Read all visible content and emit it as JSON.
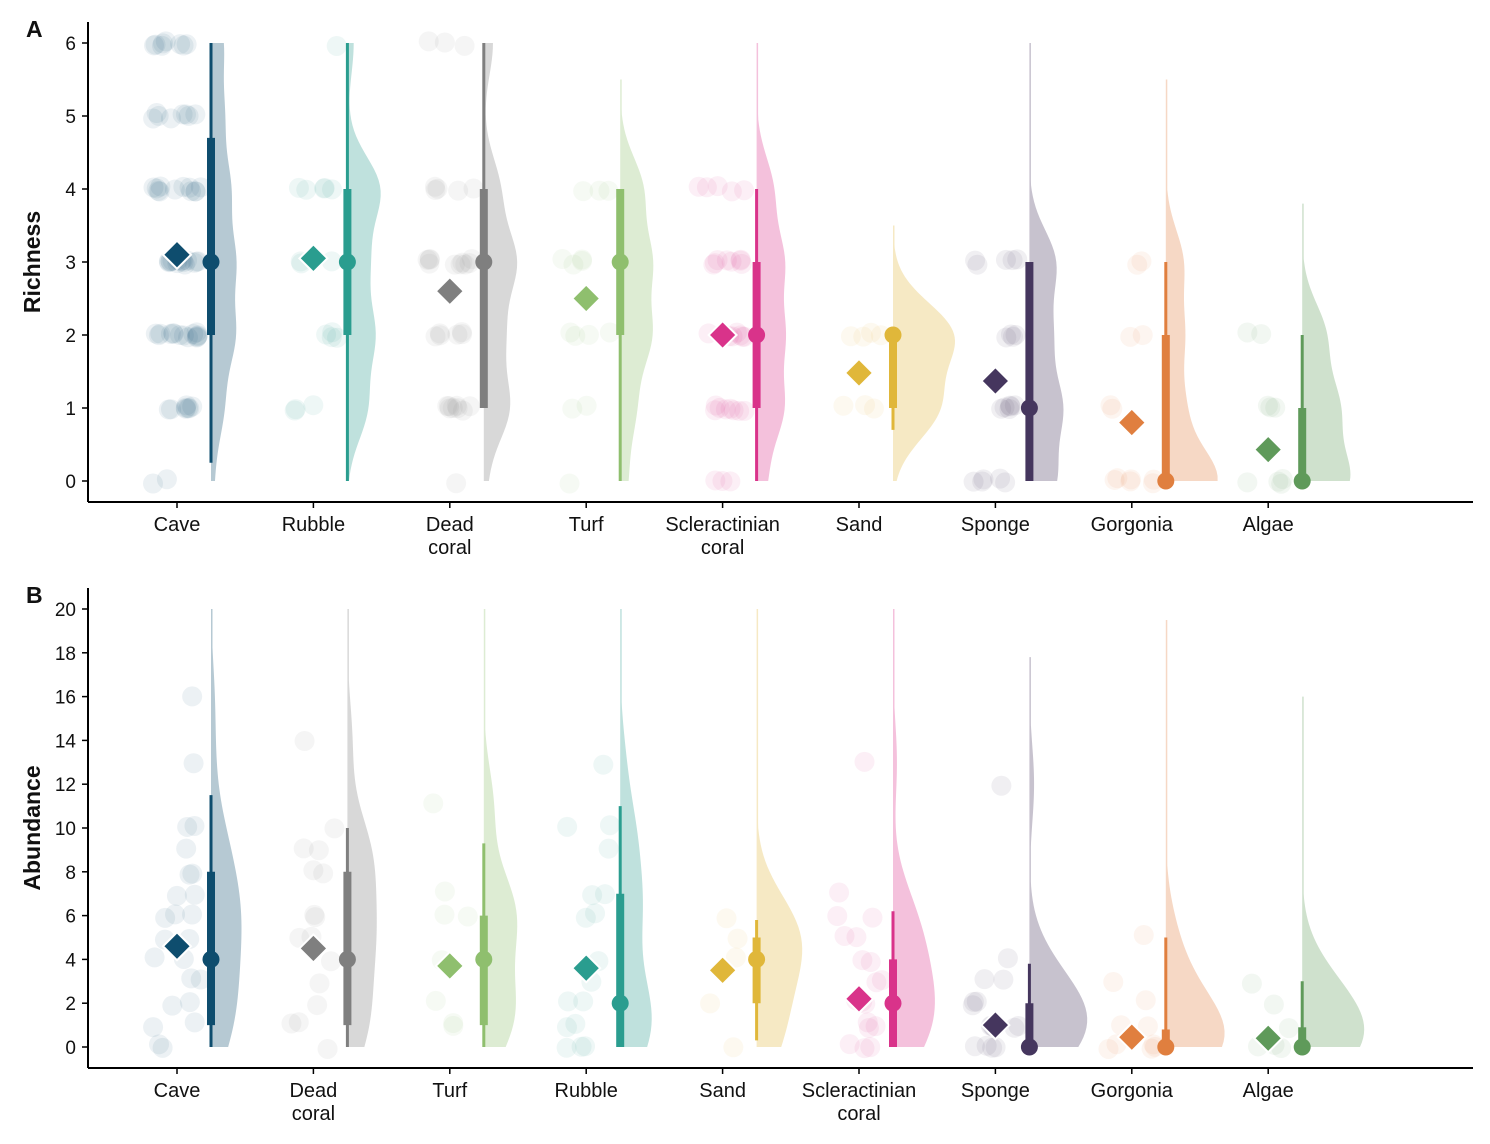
{
  "chart_data": [
    {
      "type": "raincloud",
      "panel_label": "A",
      "ylabel": "Richness",
      "ylim": [
        0,
        6
      ],
      "yticks": [
        0,
        1,
        2,
        3,
        4,
        5,
        6
      ],
      "bandwidth": 0.45,
      "groups": [
        {
          "name": "Cave",
          "color": "#0e4d6e",
          "mean": 3.1,
          "median": 3,
          "q": [
            2,
            4.7
          ],
          "whisker": [
            0.25,
            6
          ],
          "violin": [
            0,
            6
          ],
          "points": [
            0,
            0,
            1,
            1,
            1,
            1,
            1,
            1,
            1,
            1,
            2,
            2,
            2,
            2,
            2,
            2,
            2,
            2,
            2,
            2,
            2,
            2,
            2,
            2,
            2,
            3,
            3,
            3,
            3,
            3,
            3,
            3,
            3,
            3,
            3,
            3,
            3,
            3,
            3,
            3,
            4,
            4,
            4,
            4,
            4,
            4,
            4,
            4,
            4,
            4,
            4,
            4,
            5,
            5,
            5,
            5,
            5,
            5,
            5,
            5,
            6,
            6,
            6,
            6,
            6,
            6,
            6,
            6
          ]
        },
        {
          "name": "Rubble",
          "color": "#2a9d8f",
          "mean": 3.05,
          "median": 3,
          "q": [
            2,
            4
          ],
          "whisker": [
            0,
            6
          ],
          "violin": [
            0,
            6
          ],
          "points": [
            1,
            1,
            1,
            2,
            2,
            2,
            2,
            3,
            3,
            3,
            4,
            4,
            4,
            4,
            4,
            6
          ]
        },
        {
          "name": "Dead\ncoral",
          "color": "#7f7f7f",
          "mean": 2.6,
          "median": 3,
          "q": [
            1,
            4
          ],
          "whisker": [
            1,
            6
          ],
          "violin": [
            0,
            6
          ],
          "points": [
            0,
            1,
            1,
            1,
            1,
            1,
            1,
            1,
            1,
            2,
            2,
            2,
            2,
            2,
            2,
            3,
            3,
            3,
            3,
            3,
            3,
            3,
            3,
            3,
            3,
            4,
            4,
            4,
            4,
            4,
            6,
            6,
            6
          ]
        },
        {
          "name": "Turf",
          "color": "#8fbf6e",
          "mean": 2.5,
          "median": 3,
          "q": [
            2,
            4
          ],
          "whisker": [
            0,
            4
          ],
          "violin": [
            0,
            5.5
          ],
          "points": [
            0,
            1,
            1,
            2,
            2,
            2,
            2,
            3,
            3,
            3,
            3,
            4,
            4,
            4
          ]
        },
        {
          "name": "Scleractinian\ncoral",
          "color": "#d9338a",
          "mean": 2.0,
          "median": 2,
          "q": [
            1,
            3
          ],
          "whisker": [
            0,
            4
          ],
          "violin": [
            0,
            6
          ],
          "points": [
            0,
            0,
            0,
            1,
            1,
            1,
            1,
            1,
            1,
            1,
            1,
            2,
            2,
            2,
            2,
            2,
            2,
            2,
            2,
            3,
            3,
            3,
            3,
            3,
            3,
            3,
            3,
            4,
            4,
            4,
            4,
            4
          ]
        },
        {
          "name": "Sand",
          "color": "#e0b73a",
          "mean": 1.48,
          "median": 2,
          "q": [
            1,
            2
          ],
          "whisker": [
            0.7,
            2
          ],
          "violin": [
            0,
            3.5
          ],
          "points": [
            1,
            1,
            1,
            2,
            2,
            2,
            2
          ]
        },
        {
          "name": "Sponge",
          "color": "#45365e",
          "mean": 1.37,
          "median": 1,
          "q": [
            0,
            3
          ],
          "whisker": [
            0,
            3
          ],
          "violin": [
            0,
            6
          ],
          "points": [
            0,
            0,
            0,
            0,
            0,
            1,
            1,
            1,
            1,
            1,
            1,
            2,
            2,
            2,
            2,
            3,
            3,
            3,
            3,
            3
          ]
        },
        {
          "name": "Gorgonia",
          "color": "#e07f3f",
          "mean": 0.8,
          "median": 0,
          "q": [
            0,
            2
          ],
          "whisker": [
            0,
            3
          ],
          "violin": [
            0,
            5.5
          ],
          "points": [
            0,
            0,
            0,
            0,
            0,
            0,
            1,
            1,
            2,
            2,
            3,
            3
          ]
        },
        {
          "name": "Algae",
          "color": "#5f9a5a",
          "mean": 0.43,
          "median": 0,
          "q": [
            0,
            1
          ],
          "whisker": [
            0,
            2
          ],
          "violin": [
            0,
            3.8
          ],
          "points": [
            0,
            0,
            0,
            0,
            1,
            1,
            1,
            2,
            2
          ]
        }
      ]
    },
    {
      "type": "raincloud",
      "panel_label": "B",
      "ylabel": "Abundance",
      "ylim": [
        0,
        20
      ],
      "yticks": [
        0,
        2,
        4,
        6,
        8,
        10,
        12,
        14,
        16,
        18,
        20
      ],
      "bandwidth": 1.8,
      "groups": [
        {
          "name": "Cave",
          "color": "#0e4d6e",
          "mean": 4.6,
          "median": 4,
          "q": [
            1,
            8
          ],
          "whisker": [
            0,
            11.5
          ],
          "violin": [
            0,
            20
          ],
          "points": [
            0,
            0,
            1,
            1,
            2,
            2,
            3,
            3,
            4,
            4,
            5,
            5,
            6,
            6,
            6,
            7,
            7,
            8,
            8,
            9,
            10,
            10,
            13,
            16
          ]
        },
        {
          "name": "Dead\ncoral",
          "color": "#7f7f7f",
          "mean": 4.5,
          "median": 4,
          "q": [
            1,
            8
          ],
          "whisker": [
            0,
            10
          ],
          "violin": [
            0,
            20
          ],
          "points": [
            0,
            1,
            1,
            2,
            3,
            4,
            5,
            5,
            6,
            6,
            8,
            8,
            9,
            9,
            10,
            14
          ]
        },
        {
          "name": "Turf",
          "color": "#8fbf6e",
          "mean": 3.7,
          "median": 4,
          "q": [
            1,
            6
          ],
          "whisker": [
            0,
            9.3
          ],
          "violin": [
            0,
            20
          ],
          "points": [
            1,
            1,
            2,
            4,
            6,
            6,
            7,
            11
          ]
        },
        {
          "name": "Rubble",
          "color": "#2a9d8f",
          "mean": 3.6,
          "median": 2,
          "q": [
            0,
            7
          ],
          "whisker": [
            0,
            11
          ],
          "violin": [
            0,
            20
          ],
          "points": [
            0,
            0,
            0,
            1,
            1,
            2,
            2,
            3,
            4,
            6,
            6,
            7,
            7,
            9,
            10,
            10,
            13
          ]
        },
        {
          "name": "Sand",
          "color": "#e0b73a",
          "mean": 3.5,
          "median": 4,
          "q": [
            2,
            5
          ],
          "whisker": [
            0.3,
            5.8
          ],
          "violin": [
            0,
            20
          ],
          "points": [
            0,
            2,
            4,
            5,
            6
          ]
        },
        {
          "name": "Scleractinian\ncoral",
          "color": "#d9338a",
          "mean": 2.2,
          "median": 2,
          "q": [
            0,
            4
          ],
          "whisker": [
            0,
            6.2
          ],
          "violin": [
            0,
            20
          ],
          "points": [
            0,
            0,
            0,
            1,
            1,
            1,
            2,
            2,
            2,
            3,
            3,
            4,
            4,
            5,
            5,
            6,
            6,
            7,
            13
          ]
        },
        {
          "name": "Sponge",
          "color": "#45365e",
          "mean": 1.0,
          "median": 0,
          "q": [
            0,
            2
          ],
          "whisker": [
            0,
            3.8
          ],
          "violin": [
            0,
            17.8
          ],
          "points": [
            0,
            0,
            0,
            0,
            1,
            1,
            1,
            1,
            1,
            2,
            2,
            2,
            3,
            3,
            4,
            12
          ]
        },
        {
          "name": "Gorgonia",
          "color": "#e07f3f",
          "mean": 0.45,
          "median": 0,
          "q": [
            0,
            0.8
          ],
          "whisker": [
            0,
            5
          ],
          "violin": [
            0,
            19.5
          ],
          "points": [
            0,
            0,
            0,
            0,
            0,
            1,
            1,
            2,
            3,
            5
          ]
        },
        {
          "name": "Algae",
          "color": "#5f9a5a",
          "mean": 0.4,
          "median": 0,
          "q": [
            0,
            0.9
          ],
          "whisker": [
            0,
            3
          ],
          "violin": [
            0,
            16
          ],
          "points": [
            0,
            0,
            0,
            1,
            2,
            3
          ]
        }
      ]
    }
  ]
}
